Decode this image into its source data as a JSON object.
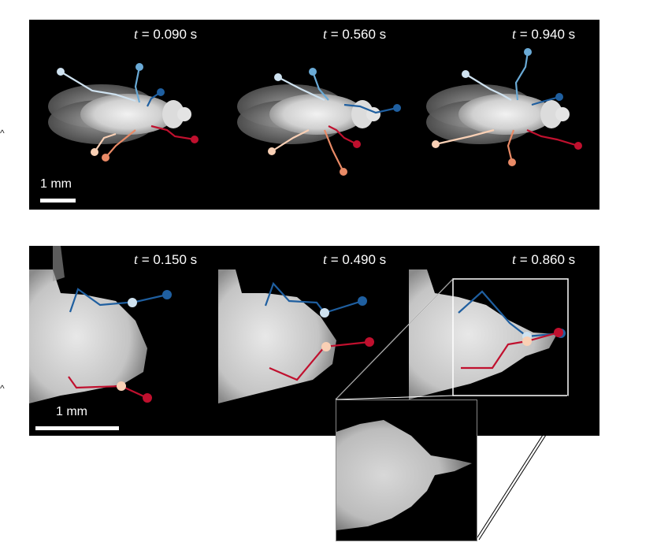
{
  "top_panel": {
    "frames": [
      {
        "time_var": "t",
        "time_value": "= 0.090 s"
      },
      {
        "time_var": "t",
        "time_value": "= 0.560 s"
      },
      {
        "time_var": "t",
        "time_value": "= 0.940 s"
      }
    ],
    "scale_label": "1 mm"
  },
  "bottom_panel": {
    "frames": [
      {
        "time_var": "t",
        "time_value": "= 0.150 s"
      },
      {
        "time_var": "t",
        "time_value": "= 0.490 s"
      },
      {
        "time_var": "t",
        "time_value": "= 0.860 s"
      }
    ],
    "scale_label": "1 mm"
  },
  "colors": {
    "dark_blue": "#1f5fa0",
    "mid_blue": "#6aaad6",
    "light_blue": "#cfe2f0",
    "dark_red": "#c0102e",
    "mid_red": "#e98a66",
    "light_red": "#f9d0b5"
  }
}
